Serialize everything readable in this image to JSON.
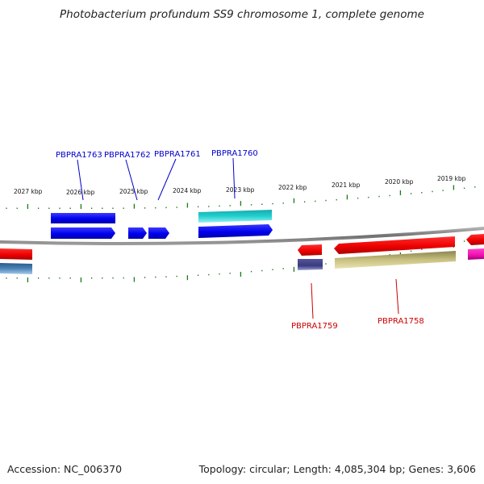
{
  "header": {
    "title": "Photobacterium profundum SS9 chromosome 1, complete genome"
  },
  "footer": {
    "accession": "Accession: NC_006370",
    "summary": "Topology: circular; Length: 4,085,304 bp; Genes: 3,606"
  },
  "scale": {
    "labels": [
      "2027 kbp",
      "2026 kbp",
      "2025 kbp",
      "2024 kbp",
      "2023 kbp",
      "2022 kbp",
      "2021 kbp",
      "2020 kbp",
      "2019 kbp"
    ]
  },
  "genes": {
    "forward_labels": [
      "PBPRA1763",
      "PBPRA1762",
      "PBPRA1761",
      "PBPRA1760"
    ],
    "reverse_labels": [
      "PBPRA1759",
      "PBPRA1758"
    ]
  },
  "colors": {
    "backbone": "#808080",
    "tick": "#1a7a1a",
    "forward_label": "#0000cc",
    "reverse_label": "#cc0000",
    "gene_blue": "#0000ee",
    "gene_cyan": "#19c8c8",
    "gene_red": "#ee0000",
    "gene_navy": "#3a3a80",
    "gene_olive": "#c8c080",
    "gene_magenta": "#ee10b0",
    "gene_steel": "#4c84b8"
  }
}
